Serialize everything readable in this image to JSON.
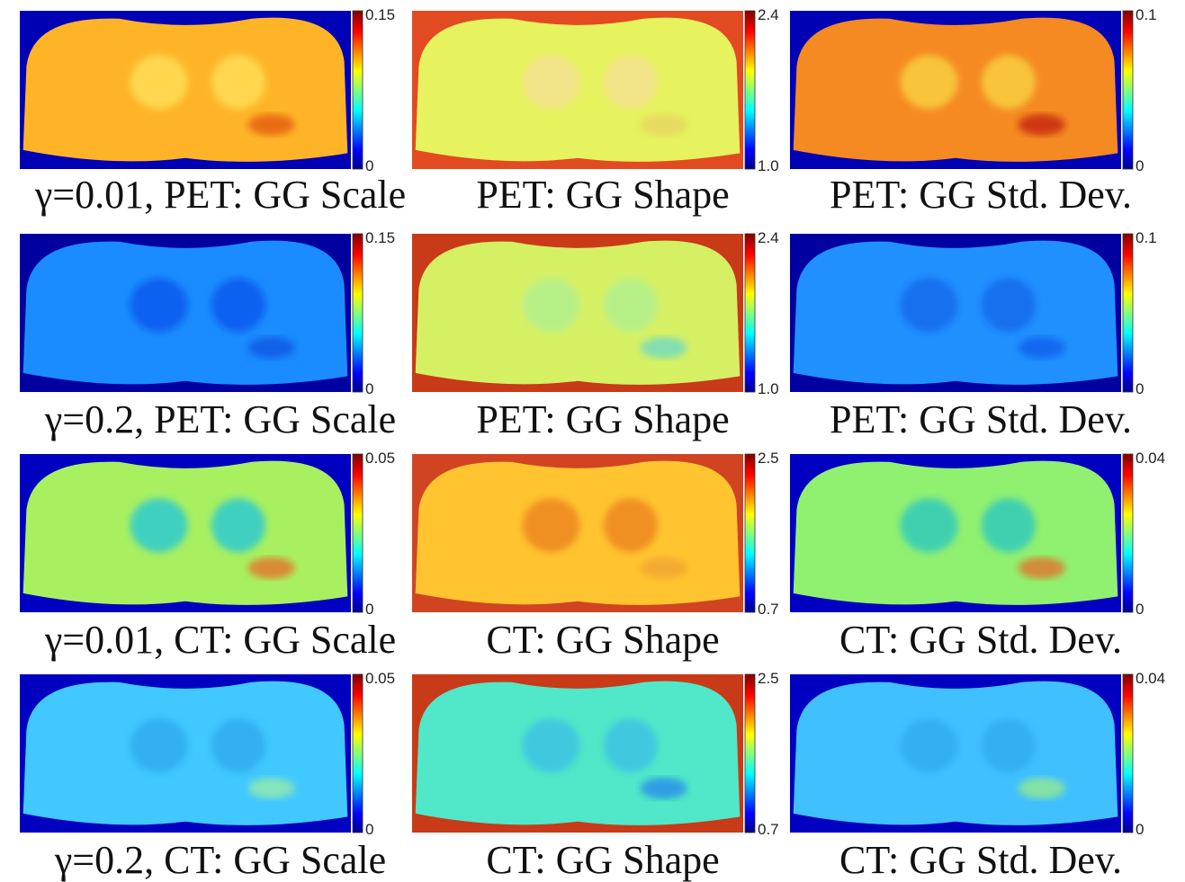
{
  "panels": [
    {
      "caption": "γ=0.01, PET: GG Scale",
      "colorbar_max": "0.15",
      "colorbar_min": "0"
    },
    {
      "caption": "PET: GG Shape",
      "colorbar_max": "2.4",
      "colorbar_min": "1.0"
    },
    {
      "caption": "PET: GG Std. Dev.",
      "colorbar_max": "0.1",
      "colorbar_min": "0"
    },
    {
      "caption": "γ=0.2, PET: GG Scale",
      "colorbar_max": "0.15",
      "colorbar_min": "0"
    },
    {
      "caption": "PET: GG Shape",
      "colorbar_max": "2.4",
      "colorbar_min": "1.0"
    },
    {
      "caption": "PET: GG Std. Dev.",
      "colorbar_max": "0.1",
      "colorbar_min": "0"
    },
    {
      "caption": "γ=0.01, CT: GG Scale",
      "colorbar_max": "0.05",
      "colorbar_min": "0"
    },
    {
      "caption": "CT: GG Shape",
      "colorbar_max": "2.5",
      "colorbar_min": "0.7"
    },
    {
      "caption": "CT: GG Std. Dev.",
      "colorbar_max": "0.04",
      "colorbar_min": "0"
    },
    {
      "caption": "γ=0.2, CT: GG Scale",
      "colorbar_max": "0.05",
      "colorbar_min": "0"
    },
    {
      "caption": "CT: GG Shape",
      "colorbar_max": "2.5",
      "colorbar_min": "0.7"
    },
    {
      "caption": "CT: GG Std. Dev.",
      "colorbar_max": "0.04",
      "colorbar_min": "0"
    }
  ]
}
